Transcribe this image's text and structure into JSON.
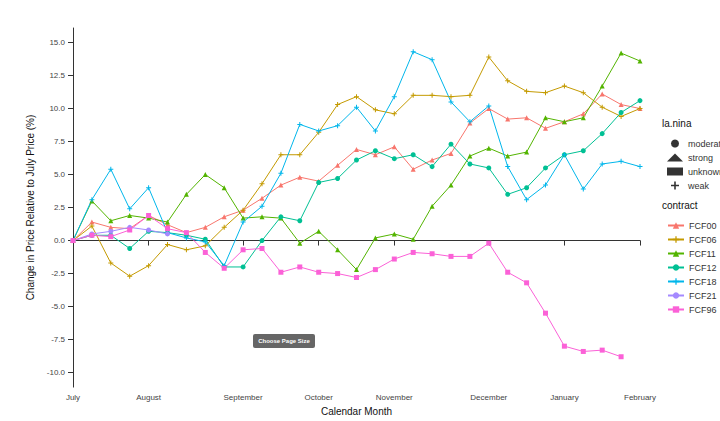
{
  "chart_data": {
    "type": "line",
    "x_label": "Calendar Month",
    "y_label": "Change in Price Relative to July Price (%)",
    "categories": [
      "July",
      null,
      null,
      null,
      "August",
      null,
      null,
      null,
      null,
      "September",
      null,
      null,
      null,
      "October",
      null,
      null,
      null,
      "November",
      null,
      null,
      null,
      null,
      "December",
      null,
      null,
      null,
      "January",
      null,
      null,
      null,
      "February"
    ],
    "ylim": [
      -11.1,
      16.1
    ],
    "yticks": [
      {
        "value": -10,
        "label": "-10.0"
      },
      {
        "value": -7.5,
        "label": "-7.5"
      },
      {
        "value": -5,
        "label": "-5.0"
      },
      {
        "value": -2.5,
        "label": "-2.5"
      },
      {
        "value": 0,
        "label": "0.0"
      },
      {
        "value": 2.5,
        "label": "2.5"
      },
      {
        "value": 5,
        "label": "5.0"
      },
      {
        "value": 7.5,
        "label": "7.5"
      },
      {
        "value": 10,
        "label": "10.0"
      },
      {
        "value": 12.5,
        "label": "12.5"
      },
      {
        "value": 15,
        "label": "15.0"
      }
    ],
    "grid": false,
    "legend": "right",
    "shape_legend": {
      "title": "la.nina",
      "items": [
        {
          "name": "moderate",
          "marker": "circle"
        },
        {
          "name": "strong",
          "marker": "triangle"
        },
        {
          "name": "unknown",
          "marker": "square"
        },
        {
          "name": "weak",
          "marker": "plus"
        }
      ]
    },
    "color_legend_title": "contract",
    "annotations": [
      "Choose Page Size"
    ],
    "series": [
      {
        "name": "FCF00",
        "color": "#F8766D",
        "marker": "triangle",
        "values": [
          0,
          1.4,
          1.0,
          0.9,
          1.9,
          1.2,
          0.6,
          1.0,
          1.8,
          2.3,
          3.2,
          4.2,
          4.8,
          4.5,
          5.7,
          6.9,
          6.5,
          7.1,
          5.4,
          6.1,
          6.6,
          8.9,
          10.0,
          9.2,
          9.3,
          8.5,
          9.0,
          9.6,
          11.1,
          10.3,
          10.0
        ]
      },
      {
        "name": "FCF06",
        "color": "#C49A00",
        "marker": "plus",
        "values": [
          0,
          1.1,
          -1.7,
          -2.7,
          -1.9,
          -0.3,
          -0.7,
          -0.4,
          1.0,
          2.3,
          4.3,
          6.5,
          6.5,
          8.2,
          10.3,
          10.9,
          9.9,
          9.6,
          11.0,
          11.0,
          10.9,
          11.0,
          13.9,
          12.1,
          11.3,
          11.2,
          11.7,
          11.2,
          10.1,
          9.4,
          10.0
        ]
      },
      {
        "name": "FCF11",
        "color": "#53B400",
        "marker": "triangle",
        "values": [
          0,
          3.0,
          1.5,
          1.9,
          1.7,
          1.4,
          3.5,
          5.0,
          4.0,
          1.7,
          1.8,
          1.7,
          -0.2,
          0.7,
          -0.7,
          -2.2,
          0.2,
          0.5,
          0.1,
          2.6,
          4.2,
          6.4,
          7.0,
          6.4,
          6.7,
          9.3,
          9.0,
          9.3,
          11.7,
          14.2,
          13.6
        ]
      },
      {
        "name": "FCF12",
        "color": "#00C094",
        "marker": "circle",
        "values": [
          0,
          0.4,
          0.4,
          -0.6,
          0.7,
          0.6,
          0.4,
          0.1,
          -2.0,
          -2.0,
          0.0,
          1.8,
          1.5,
          4.4,
          4.7,
          6.1,
          6.8,
          6.2,
          6.5,
          5.6,
          7.3,
          5.8,
          5.5,
          3.5,
          4.0,
          5.5,
          6.5,
          6.8,
          8.1,
          9.7,
          10.6
        ]
      },
      {
        "name": "FCF18",
        "color": "#00B6EB",
        "marker": "plus",
        "values": [
          0,
          3.1,
          5.4,
          2.4,
          4.0,
          0.6,
          0.2,
          -0.1,
          -1.9,
          1.4,
          2.6,
          5.1,
          8.8,
          8.3,
          8.7,
          10.1,
          8.3,
          10.9,
          14.3,
          13.7,
          10.5,
          9.0,
          10.2,
          5.6,
          3.1,
          4.2,
          6.5,
          3.9,
          5.8,
          6.0,
          5.6
        ]
      },
      {
        "name": "FCF21",
        "color": "#A58AFF",
        "marker": "circle",
        "values": [
          0,
          0.5,
          0.7,
          1.0,
          0.8,
          0.5,
          null,
          null,
          null,
          null,
          null,
          null,
          null,
          null,
          null,
          null,
          null,
          null,
          null,
          null,
          null,
          null,
          null,
          null,
          null,
          null,
          null,
          null,
          null,
          null,
          null
        ]
      },
      {
        "name": "FCF96",
        "color": "#FB61D7",
        "marker": "square",
        "values": [
          0,
          0.4,
          0.3,
          0.8,
          1.9,
          0.9,
          0.6,
          -0.9,
          -2.1,
          -0.7,
          -0.6,
          -2.4,
          -2.0,
          -2.4,
          -2.5,
          -2.8,
          -2.2,
          -1.4,
          -0.9,
          -1.0,
          -1.2,
          -1.2,
          -0.2,
          -2.4,
          -3.2,
          -5.5,
          -8.0,
          -8.4,
          -8.3,
          -8.8,
          null
        ]
      }
    ]
  }
}
